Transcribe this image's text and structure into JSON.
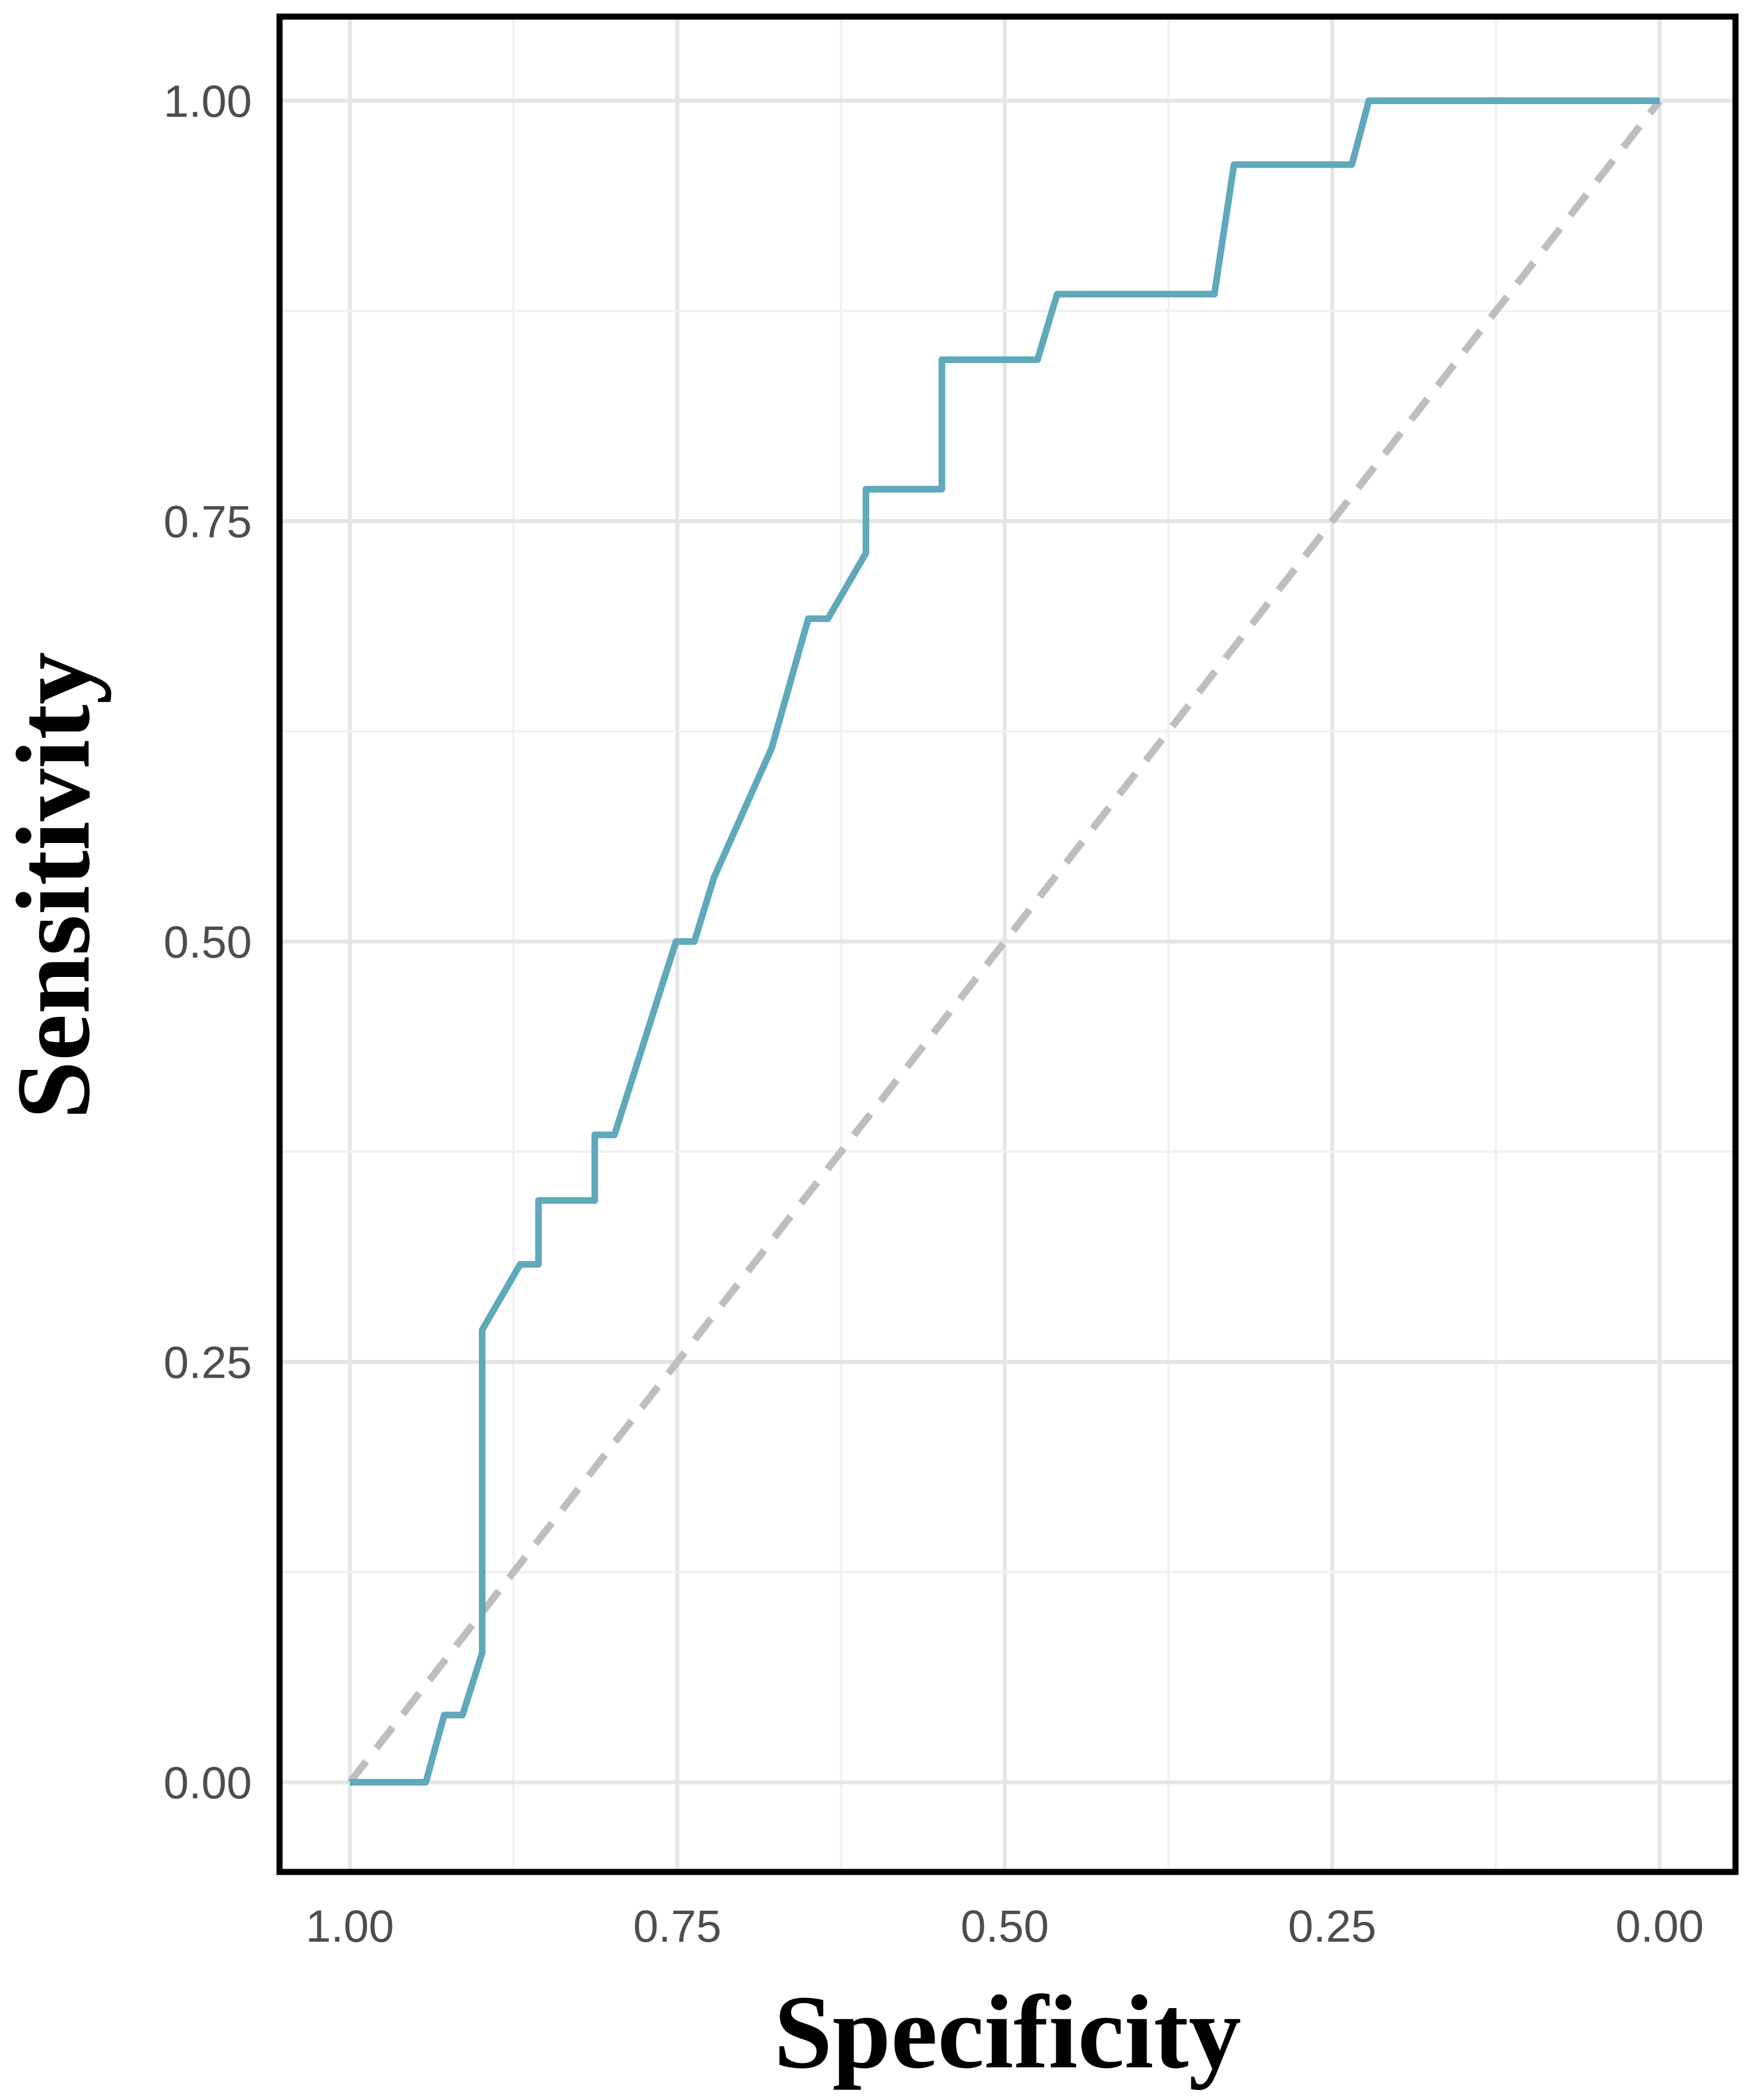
{
  "chart_data": {
    "type": "line",
    "xlabel": "Specificity",
    "ylabel": "Sensitivity",
    "x_reversed": true,
    "xlim": [
      1.0,
      0.0
    ],
    "ylim": [
      0.0,
      1.0
    ],
    "x_ticks": [
      "1.00",
      "0.75",
      "0.50",
      "0.25",
      "0.00"
    ],
    "y_ticks": [
      "1.00",
      "0.75",
      "0.50",
      "0.25",
      "0.00"
    ],
    "grid": true,
    "series": [
      {
        "color": "#5fa9bb",
        "style": "solid",
        "x": [
          1.0,
          0.942,
          0.928,
          0.914,
          0.899,
          0.899,
          0.87,
          0.856,
          0.856,
          0.813,
          0.813,
          0.798,
          0.751,
          0.737,
          0.722,
          0.678,
          0.65,
          0.635,
          0.606,
          0.606,
          0.548,
          0.548,
          0.475,
          0.46,
          0.34,
          0.325,
          0.235,
          0.222,
          0.0
        ],
        "y": [
          0.0,
          0.0,
          0.04,
          0.04,
          0.077,
          0.269,
          0.308,
          0.308,
          0.346,
          0.346,
          0.385,
          0.385,
          0.5,
          0.5,
          0.538,
          0.615,
          0.692,
          0.692,
          0.731,
          0.769,
          0.769,
          0.846,
          0.846,
          0.885,
          0.885,
          0.962,
          0.962,
          1.0,
          1.0
        ]
      },
      {
        "color": "#bebebe",
        "style": "dashed",
        "x": [
          1.0,
          0.0
        ],
        "y": [
          0.0,
          1.0
        ]
      }
    ]
  }
}
